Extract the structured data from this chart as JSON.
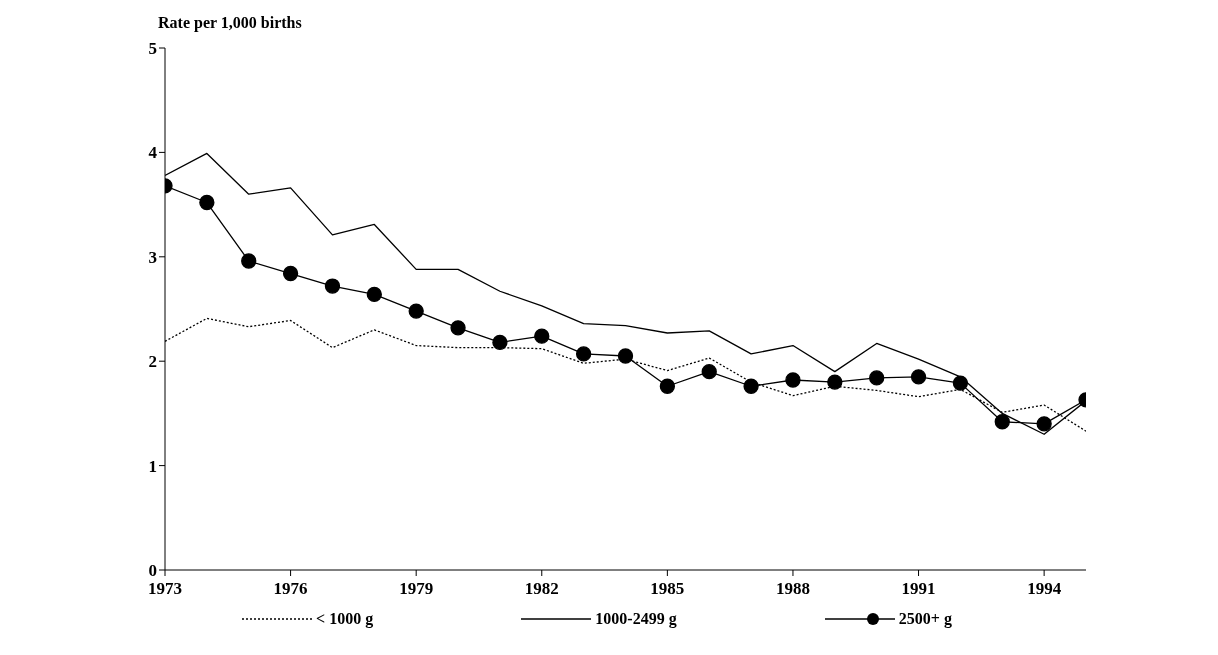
{
  "chart_data": {
    "type": "line",
    "ylabel": "Rate per 1,000 births",
    "x": [
      1973,
      1974,
      1975,
      1976,
      1977,
      1978,
      1979,
      1980,
      1981,
      1982,
      1983,
      1984,
      1985,
      1986,
      1987,
      1988,
      1989,
      1990,
      1991,
      1992,
      1993,
      1994,
      1995
    ],
    "series": [
      {
        "name": "< 1000 g",
        "color": "#000000",
        "line_style": "dotted",
        "marker": "none",
        "values": [
          2.19,
          2.41,
          2.33,
          2.39,
          2.13,
          2.3,
          2.15,
          2.13,
          2.13,
          2.12,
          1.98,
          2.02,
          1.91,
          2.03,
          1.8,
          1.67,
          1.76,
          1.72,
          1.66,
          1.73,
          1.51,
          1.58,
          1.33
        ]
      },
      {
        "name": "1000-2499 g",
        "color": "#000000",
        "line_style": "solid",
        "marker": "none",
        "values": [
          3.78,
          3.99,
          3.6,
          3.66,
          3.21,
          3.31,
          2.88,
          2.88,
          2.67,
          2.53,
          2.36,
          2.34,
          2.27,
          2.29,
          2.07,
          2.15,
          1.9,
          2.17,
          2.02,
          1.85,
          1.5,
          1.3,
          1.62
        ]
      },
      {
        "name": "2500+ g",
        "color": "#000000",
        "line_style": "solid",
        "marker": "circle",
        "values": [
          3.68,
          3.52,
          2.96,
          2.84,
          2.72,
          2.64,
          2.48,
          2.32,
          2.18,
          2.24,
          2.07,
          2.05,
          1.76,
          1.9,
          1.76,
          1.82,
          1.8,
          1.84,
          1.85,
          1.79,
          1.42,
          1.4,
          1.63
        ]
      }
    ],
    "xlim": [
      1973,
      1995
    ],
    "xticks": [
      1973,
      1976,
      1979,
      1982,
      1985,
      1988,
      1991,
      1994
    ],
    "ylim": [
      0,
      5
    ],
    "yticks": [
      0,
      1,
      2,
      3,
      4,
      5
    ],
    "grid": false,
    "legend": "bottom"
  }
}
